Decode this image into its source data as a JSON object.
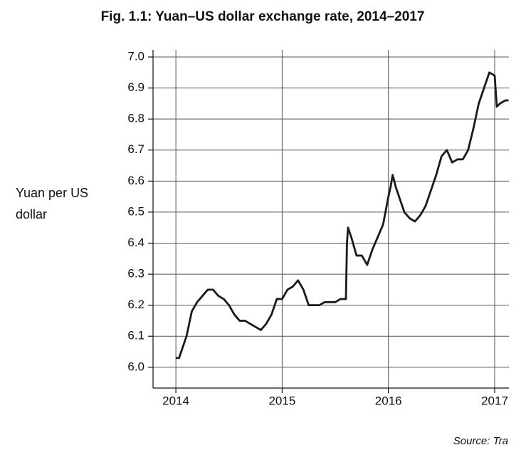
{
  "chart_data": {
    "type": "line",
    "title": "Fig. 1.1: Yuan–US dollar exchange rate, 2014–2017",
    "y_label": "Yuan per US dollar",
    "source": "Source: Tra",
    "x": [
      2014.0,
      2014.03,
      2014.05,
      2014.1,
      2014.15,
      2014.2,
      2014.25,
      2014.3,
      2014.35,
      2014.4,
      2014.45,
      2014.5,
      2014.55,
      2014.6,
      2014.65,
      2014.7,
      2014.75,
      2014.8,
      2014.85,
      2014.9,
      2014.95,
      2015.0,
      2015.05,
      2015.1,
      2015.15,
      2015.2,
      2015.25,
      2015.3,
      2015.35,
      2015.4,
      2015.45,
      2015.5,
      2015.55,
      2015.6,
      2015.61,
      2015.62,
      2015.65,
      2015.7,
      2015.75,
      2015.8,
      2015.85,
      2015.9,
      2015.95,
      2016.0,
      2016.02,
      2016.04,
      2016.07,
      2016.1,
      2016.15,
      2016.2,
      2016.25,
      2016.3,
      2016.35,
      2016.4,
      2016.45,
      2016.5,
      2016.55,
      2016.6,
      2016.65,
      2016.7,
      2016.75,
      2016.8,
      2016.85,
      2016.9,
      2016.95,
      2017.0,
      2017.02,
      2017.05,
      2017.1,
      2017.13
    ],
    "series": [
      {
        "name": "Yuan per US dollar",
        "color": "#1a1a1a",
        "values": [
          6.03,
          6.03,
          6.05,
          6.1,
          6.18,
          6.21,
          6.23,
          6.25,
          6.25,
          6.23,
          6.22,
          6.2,
          6.17,
          6.15,
          6.15,
          6.14,
          6.13,
          6.12,
          6.14,
          6.17,
          6.22,
          6.22,
          6.25,
          6.26,
          6.28,
          6.25,
          6.2,
          6.2,
          6.2,
          6.21,
          6.21,
          6.21,
          6.22,
          6.22,
          6.4,
          6.45,
          6.42,
          6.36,
          6.36,
          6.33,
          6.38,
          6.42,
          6.46,
          6.55,
          6.58,
          6.62,
          6.58,
          6.55,
          6.5,
          6.48,
          6.47,
          6.49,
          6.52,
          6.57,
          6.62,
          6.68,
          6.7,
          6.66,
          6.67,
          6.67,
          6.7,
          6.77,
          6.85,
          6.9,
          6.95,
          6.94,
          6.84,
          6.85,
          6.86,
          6.86
        ]
      }
    ],
    "xlim": [
      2013.785,
      2017.134
    ],
    "ylim": [
      5.933,
      7.023
    ],
    "xticks": [
      2014,
      2015,
      2016,
      2017
    ],
    "yticks": [
      {
        "value": 6,
        "label": "6.0"
      },
      6.1,
      6.2,
      6.3,
      6.4,
      6.5,
      6.6,
      6.7,
      6.8,
      6.9,
      {
        "value": 7,
        "label": "7.0"
      }
    ],
    "grid": true
  }
}
